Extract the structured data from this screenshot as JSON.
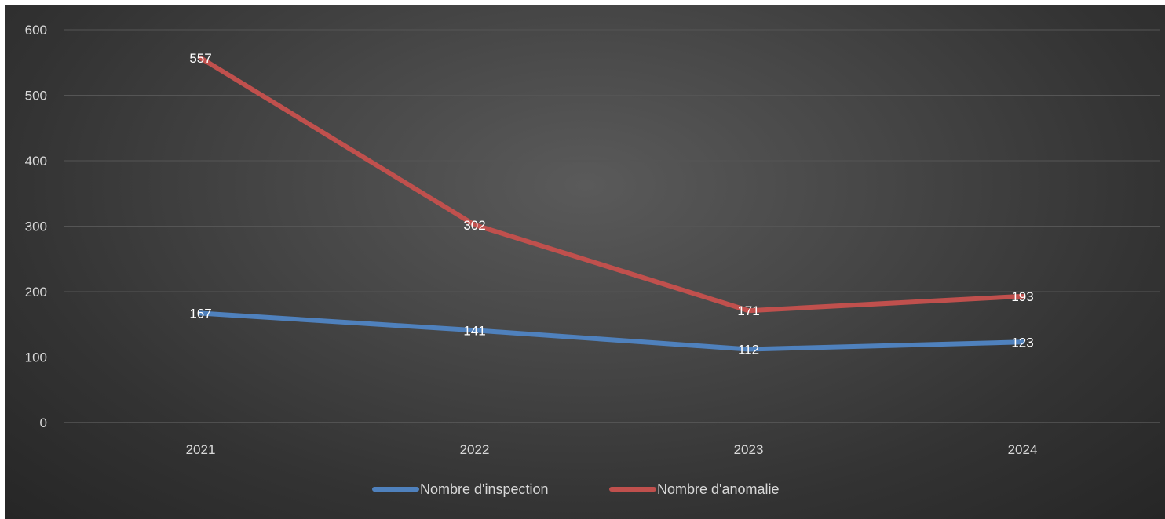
{
  "chart_data": {
    "type": "line",
    "categories": [
      "2021",
      "2022",
      "2023",
      "2024"
    ],
    "series": [
      {
        "name": "Nombre d'inspection",
        "values": [
          167,
          141,
          112,
          123
        ],
        "color": "#4f81bd"
      },
      {
        "name": "Nombre d'anomalie",
        "values": [
          557,
          302,
          171,
          193
        ],
        "color": "#c0504d"
      }
    ],
    "ylim": [
      0,
      600
    ],
    "yticks": [
      0,
      100,
      200,
      300,
      400,
      500,
      600
    ],
    "grid": true,
    "legend_position": "bottom",
    "background": "#404040"
  }
}
